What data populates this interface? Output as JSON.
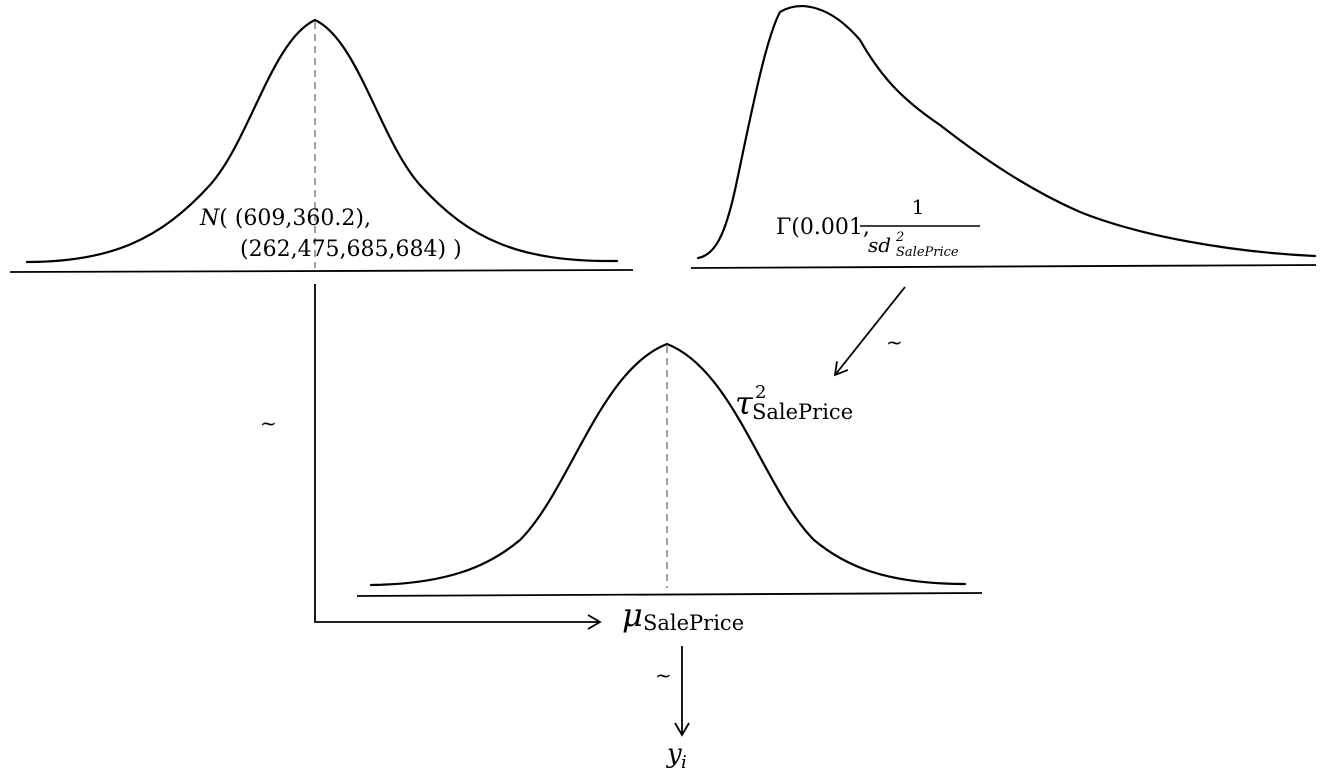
{
  "prior_mu": {
    "symbol": "N",
    "line1": "( (609,360.2),",
    "line2": "(262,475,685,684) )"
  },
  "prior_tau": {
    "prefix": "Γ(0.001,",
    "numerator": "1",
    "denominator_base": "sd",
    "denominator_sup": "2",
    "denominator_sub": "SalePrice"
  },
  "labels": {
    "tau_symbol": "τ",
    "tau_sup": "2",
    "tau_sub": "SalePrice",
    "mu_symbol": "μ",
    "mu_sub": "SalePrice",
    "y_symbol": "y",
    "y_sub": "i",
    "tilde": "~"
  }
}
